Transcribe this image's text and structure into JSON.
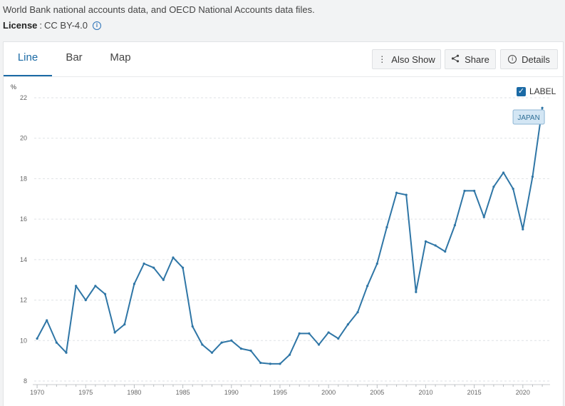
{
  "header": {
    "source_text": "World Bank national accounts data, and OECD National Accounts data files.",
    "license_label": "License",
    "license_sep": ":",
    "license_value": "CC BY-4.0",
    "info_icon": "info-icon"
  },
  "tabs": [
    {
      "label": "Line",
      "active": true
    },
    {
      "label": "Bar",
      "active": false
    },
    {
      "label": "Map",
      "active": false
    }
  ],
  "toolbar": {
    "also_show": "Also Show",
    "share": "Share",
    "details": "Details",
    "icons": [
      "kebab-icon",
      "share-icon",
      "info-icon"
    ]
  },
  "label_toggle": {
    "label": "LABEL",
    "checked": true
  },
  "colors": {
    "line": "#2f76a6",
    "accent": "#1b6aa5",
    "tag_bg": "#d3e6f4",
    "tag_border": "#8fb6d4",
    "tag_text": "#2f6f96"
  },
  "chart_data": {
    "type": "line",
    "unit": "%",
    "x": [
      1970,
      1971,
      1972,
      1973,
      1974,
      1975,
      1976,
      1977,
      1978,
      1979,
      1980,
      1981,
      1982,
      1983,
      1984,
      1985,
      1986,
      1987,
      1988,
      1989,
      1990,
      1991,
      1992,
      1993,
      1994,
      1995,
      1996,
      1997,
      1998,
      1999,
      2000,
      2001,
      2002,
      2003,
      2004,
      2005,
      2006,
      2007,
      2008,
      2009,
      2010,
      2011,
      2012,
      2013,
      2014,
      2015,
      2016,
      2017,
      2018,
      2019,
      2020,
      2021,
      2022
    ],
    "series": [
      {
        "name": "JAPAN",
        "values": [
          10.1,
          11.0,
          9.9,
          9.4,
          12.7,
          12.0,
          12.7,
          12.3,
          10.4,
          10.8,
          12.8,
          13.8,
          13.6,
          13.0,
          14.1,
          13.6,
          10.7,
          9.8,
          9.4,
          9.9,
          10.0,
          9.6,
          9.5,
          8.9,
          8.85,
          8.85,
          9.3,
          10.35,
          10.35,
          9.8,
          10.4,
          10.1,
          10.8,
          11.4,
          12.7,
          13.8,
          15.6,
          17.3,
          17.2,
          12.4,
          14.9,
          14.7,
          14.4,
          15.7,
          17.4,
          17.4,
          16.1,
          17.6,
          18.3,
          17.5,
          15.5,
          18.1,
          21.5
        ]
      }
    ],
    "xlim": [
      1969.7,
      2022.8
    ],
    "ylim": [
      8,
      22
    ],
    "yticks": [
      "8",
      "10",
      "12",
      "14",
      "16",
      "18",
      "20",
      "22"
    ],
    "xticks": [
      "1970",
      "1975",
      "1980",
      "1985",
      "1990",
      "1995",
      "2000",
      "2005",
      "2010",
      "2015",
      "2020"
    ],
    "grid": "horizontal-dashed",
    "legend": "none"
  }
}
